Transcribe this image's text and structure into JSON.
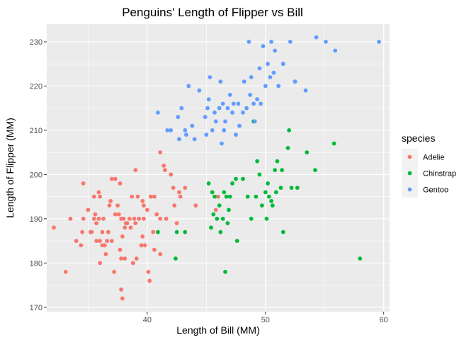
{
  "chart_data": {
    "type": "scatter",
    "title": "Penguins' Length of Flipper vs Bill",
    "xlabel": "Length of Bill (MM)",
    "ylabel": "Length of Flipper (MM)",
    "xlim": [
      31.5,
      60.5
    ],
    "ylim": [
      169,
      234
    ],
    "x_ticks": [
      40,
      50,
      60
    ],
    "y_ticks": [
      170,
      180,
      190,
      200,
      210,
      220,
      230
    ],
    "grid": true,
    "legend": {
      "title": "species",
      "position": "right"
    },
    "series": [
      {
        "name": "Adelie",
        "color": "#F8766D",
        "points": [
          [
            32.1,
            188
          ],
          [
            33.1,
            178
          ],
          [
            33.5,
            190
          ],
          [
            34.0,
            185
          ],
          [
            34.4,
            184
          ],
          [
            34.5,
            187
          ],
          [
            34.6,
            190
          ],
          [
            34.6,
            198
          ],
          [
            35.0,
            192
          ],
          [
            35.2,
            187
          ],
          [
            35.3,
            187
          ],
          [
            35.5,
            190
          ],
          [
            35.5,
            195
          ],
          [
            35.6,
            191
          ],
          [
            35.7,
            185
          ],
          [
            35.7,
            189
          ],
          [
            35.9,
            190
          ],
          [
            35.9,
            196
          ],
          [
            36.0,
            180
          ],
          [
            36.0,
            185
          ],
          [
            36.0,
            195
          ],
          [
            36.2,
            187
          ],
          [
            36.3,
            190
          ],
          [
            36.4,
            184
          ],
          [
            36.5,
            182
          ],
          [
            36.6,
            185
          ],
          [
            36.7,
            187
          ],
          [
            36.8,
            193
          ],
          [
            37.0,
            185
          ],
          [
            37.0,
            199
          ],
          [
            37.2,
            178
          ],
          [
            37.3,
            191
          ],
          [
            37.3,
            199
          ],
          [
            37.5,
            193
          ],
          [
            37.6,
            191
          ],
          [
            37.7,
            183
          ],
          [
            37.7,
            198
          ],
          [
            37.8,
            174
          ],
          [
            37.8,
            181
          ],
          [
            37.8,
            190
          ],
          [
            37.9,
            172
          ],
          [
            38.0,
            190
          ],
          [
            38.1,
            181
          ],
          [
            38.1,
            188
          ],
          [
            38.2,
            189
          ],
          [
            38.5,
            190
          ],
          [
            38.6,
            188
          ],
          [
            38.7,
            195
          ],
          [
            38.8,
            180
          ],
          [
            38.9,
            190
          ],
          [
            39.0,
            189
          ],
          [
            39.1,
            181
          ],
          [
            39.2,
            195
          ],
          [
            39.3,
            190
          ],
          [
            39.5,
            184
          ],
          [
            39.6,
            186
          ],
          [
            39.6,
            194
          ],
          [
            39.7,
            193
          ],
          [
            39.8,
            184
          ],
          [
            40.1,
            178
          ],
          [
            40.2,
            176
          ],
          [
            40.3,
            195
          ],
          [
            40.5,
            187
          ],
          [
            40.6,
            183
          ],
          [
            40.6,
            195
          ],
          [
            40.8,
            191
          ],
          [
            40.9,
            187
          ],
          [
            41.1,
            182
          ],
          [
            41.1,
            190
          ],
          [
            41.1,
            205
          ],
          [
            41.4,
            202
          ],
          [
            41.5,
            201
          ],
          [
            41.6,
            190
          ],
          [
            42.0,
            200
          ],
          [
            42.2,
            197
          ],
          [
            42.5,
            189
          ],
          [
            42.7,
            196
          ],
          [
            42.8,
            195
          ],
          [
            43.2,
            197
          ],
          [
            44.1,
            193
          ],
          [
            45.8,
            192
          ],
          [
            46.0,
            195
          ],
          [
            36.2,
            184
          ],
          [
            39.0,
            201
          ],
          [
            38.3,
            189
          ],
          [
            37.9,
            186
          ],
          [
            39.7,
            190
          ],
          [
            42.3,
            193
          ],
          [
            36.9,
            194
          ],
          [
            40.0,
            192
          ]
        ]
      },
      {
        "name": "Chinstrap",
        "color": "#00BA38",
        "points": [
          [
            40.9,
            187
          ],
          [
            42.4,
            181
          ],
          [
            42.5,
            187
          ],
          [
            43.2,
            187
          ],
          [
            45.2,
            198
          ],
          [
            45.4,
            188
          ],
          [
            45.5,
            196
          ],
          [
            45.6,
            191
          ],
          [
            45.7,
            195
          ],
          [
            45.9,
            190
          ],
          [
            46.1,
            193
          ],
          [
            46.2,
            187
          ],
          [
            46.4,
            190
          ],
          [
            46.5,
            196
          ],
          [
            46.6,
            178
          ],
          [
            46.7,
            195
          ],
          [
            46.8,
            189
          ],
          [
            46.9,
            192
          ],
          [
            47.0,
            195
          ],
          [
            47.5,
            199
          ],
          [
            47.6,
            185
          ],
          [
            48.1,
            199
          ],
          [
            48.5,
            195
          ],
          [
            49.0,
            212
          ],
          [
            49.2,
            195
          ],
          [
            49.5,
            200
          ],
          [
            49.7,
            193
          ],
          [
            50.0,
            196
          ],
          [
            50.2,
            198
          ],
          [
            50.5,
            194
          ],
          [
            50.6,
            193
          ],
          [
            50.8,
            201
          ],
          [
            50.9,
            196
          ],
          [
            51.0,
            203
          ],
          [
            51.3,
            197
          ],
          [
            51.4,
            201
          ],
          [
            51.5,
            187
          ],
          [
            51.9,
            206
          ],
          [
            52.0,
            210
          ],
          [
            52.2,
            197
          ],
          [
            52.7,
            197
          ],
          [
            53.5,
            205
          ],
          [
            54.2,
            201
          ],
          [
            55.8,
            207
          ],
          [
            58.0,
            181
          ],
          [
            50.1,
            190
          ],
          [
            49.3,
            203
          ],
          [
            48.8,
            190
          ],
          [
            47.2,
            198
          ],
          [
            50.3,
            195
          ]
        ]
      },
      {
        "name": "Gentoo",
        "color": "#619CFF",
        "points": [
          [
            40.9,
            214
          ],
          [
            41.7,
            210
          ],
          [
            42.0,
            210
          ],
          [
            42.6,
            213
          ],
          [
            42.7,
            208
          ],
          [
            42.9,
            215
          ],
          [
            43.2,
            210
          ],
          [
            43.3,
            209
          ],
          [
            43.5,
            220
          ],
          [
            43.8,
            211
          ],
          [
            44.0,
            208
          ],
          [
            44.4,
            219
          ],
          [
            44.9,
            213
          ],
          [
            45.1,
            215
          ],
          [
            45.2,
            217
          ],
          [
            45.3,
            222
          ],
          [
            45.5,
            210
          ],
          [
            45.7,
            214
          ],
          [
            45.8,
            212
          ],
          [
            46.1,
            215
          ],
          [
            46.2,
            221
          ],
          [
            46.4,
            216
          ],
          [
            46.5,
            210
          ],
          [
            46.6,
            212
          ],
          [
            46.8,
            215
          ],
          [
            47.0,
            218
          ],
          [
            47.2,
            214
          ],
          [
            47.3,
            216
          ],
          [
            47.5,
            209
          ],
          [
            47.7,
            216
          ],
          [
            48.1,
            214
          ],
          [
            48.2,
            221
          ],
          [
            48.4,
            215
          ],
          [
            48.6,
            230
          ],
          [
            48.7,
            218
          ],
          [
            48.8,
            222
          ],
          [
            49.1,
            212
          ],
          [
            49.3,
            217
          ],
          [
            49.5,
            224
          ],
          [
            49.6,
            216
          ],
          [
            49.8,
            229
          ],
          [
            50.0,
            220
          ],
          [
            50.2,
            225
          ],
          [
            50.4,
            222
          ],
          [
            50.5,
            230
          ],
          [
            50.8,
            228
          ],
          [
            51.1,
            220
          ],
          [
            51.5,
            225
          ],
          [
            52.1,
            230
          ],
          [
            52.5,
            221
          ],
          [
            53.4,
            219
          ],
          [
            54.3,
            231
          ],
          [
            55.1,
            230
          ],
          [
            55.9,
            228
          ],
          [
            59.6,
            230
          ],
          [
            45.0,
            209
          ],
          [
            46.3,
            207
          ],
          [
            47.8,
            211
          ],
          [
            49.0,
            216
          ],
          [
            50.7,
            223
          ]
        ]
      }
    ]
  }
}
